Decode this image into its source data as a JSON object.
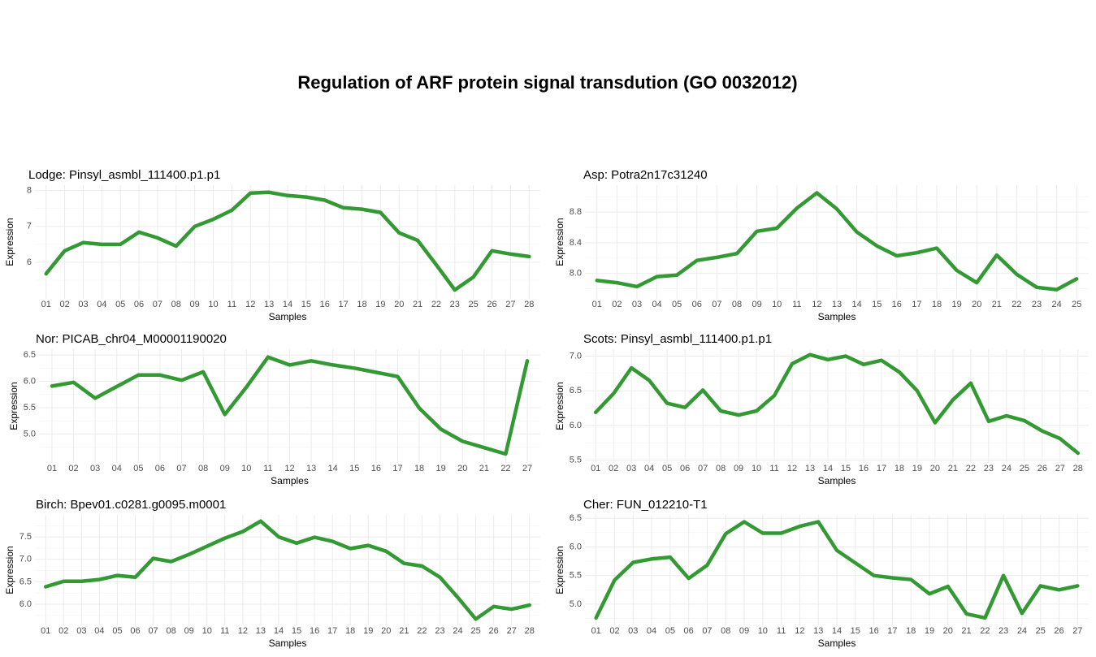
{
  "title": "Regulation of ARF protein signal transdution (GO 0032012)",
  "chart_data": [
    {
      "type": "line",
      "title": "Lodge: Pinsyl_asmbl_111400.p1.p1",
      "xlabel": "Samples",
      "ylabel": "Expression",
      "color": "#339933",
      "grid": true,
      "categories": [
        "01",
        "02",
        "03",
        "04",
        "05",
        "06",
        "07",
        "08",
        "09",
        "10",
        "11",
        "12",
        "13",
        "14",
        "15",
        "16",
        "17",
        "18",
        "19",
        "20",
        "21",
        "22",
        "23",
        "25",
        "26",
        "27",
        "28"
      ],
      "values": [
        5.68,
        6.32,
        6.55,
        6.5,
        6.5,
        6.84,
        6.68,
        6.45,
        7.0,
        7.2,
        7.45,
        7.93,
        7.95,
        7.86,
        7.82,
        7.73,
        7.52,
        7.48,
        7.39,
        6.82,
        6.61,
        5.93,
        5.23,
        5.59,
        6.32,
        6.23,
        6.16
      ],
      "ylim": [
        4.98,
        8.15
      ],
      "yticks": [
        6,
        7,
        8
      ]
    },
    {
      "type": "line",
      "title": "Asp: Potra2n17c31240",
      "xlabel": "Samples",
      "ylabel": "Expression",
      "color": "#339933",
      "grid": true,
      "categories": [
        "01",
        "02",
        "03",
        "04",
        "05",
        "06",
        "07",
        "08",
        "09",
        "10",
        "11",
        "12",
        "13",
        "14",
        "15",
        "16",
        "17",
        "18",
        "19",
        "20",
        "21",
        "22",
        "23",
        "24",
        "25"
      ],
      "values": [
        7.91,
        7.88,
        7.83,
        7.96,
        7.98,
        8.17,
        8.21,
        8.26,
        8.55,
        8.59,
        8.85,
        9.05,
        8.84,
        8.54,
        8.36,
        8.23,
        8.27,
        8.33,
        8.04,
        7.88,
        8.24,
        7.99,
        7.82,
        7.79,
        7.93
      ],
      "ylim": [
        7.67,
        9.15
      ],
      "yticks": [
        {
          "value": 8,
          "label": "8.0"
        },
        8.4,
        8.8
      ]
    },
    {
      "type": "line",
      "title": "Nor: PICAB_chr04_M00001190020",
      "xlabel": "Samples",
      "ylabel": "Expression",
      "color": "#339933",
      "grid": true,
      "categories": [
        "01",
        "02",
        "03",
        "04",
        "05",
        "06",
        "07",
        "08",
        "09",
        "10",
        "11",
        "12",
        "13",
        "14",
        "15",
        "16",
        "17",
        "18",
        "19",
        "20",
        "21",
        "22",
        "27"
      ],
      "values": [
        5.91,
        5.98,
        5.68,
        5.9,
        6.12,
        6.12,
        6.02,
        6.18,
        5.37,
        5.89,
        6.46,
        6.31,
        6.39,
        6.31,
        6.25,
        6.17,
        6.09,
        5.49,
        5.09,
        4.86,
        4.74,
        4.62,
        6.39
      ],
      "ylim": [
        4.45,
        6.61
      ],
      "yticks": [
        {
          "value": 5,
          "label": "5.0"
        },
        5.5,
        {
          "value": 6,
          "label": "6.0"
        },
        6.5
      ]
    },
    {
      "type": "line",
      "title": "Scots: Pinsyl_asmbl_111400.p1.p1",
      "xlabel": "Samples",
      "ylabel": "Expression",
      "color": "#339933",
      "grid": true,
      "categories": [
        "01",
        "02",
        "03",
        "04",
        "05",
        "06",
        "07",
        "08",
        "09",
        "10",
        "11",
        "12",
        "13",
        "14",
        "15",
        "16",
        "17",
        "18",
        "19",
        "20",
        "21",
        "22",
        "23",
        "24",
        "25",
        "26",
        "27",
        "28"
      ],
      "values": [
        6.19,
        6.46,
        6.83,
        6.65,
        6.32,
        6.26,
        6.51,
        6.21,
        6.15,
        6.21,
        6.43,
        6.89,
        7.02,
        6.95,
        7.0,
        6.88,
        6.94,
        6.77,
        6.5,
        6.04,
        6.37,
        6.61,
        6.06,
        6.14,
        6.07,
        5.92,
        5.81,
        5.6
      ],
      "ylim": [
        5.46,
        7.1
      ],
      "yticks": [
        5.5,
        {
          "value": 6,
          "label": "6.0"
        },
        6.5,
        {
          "value": 7,
          "label": "7.0"
        }
      ]
    },
    {
      "type": "line",
      "title": "Birch: Bpev01.c0281.g0095.m0001",
      "xlabel": "Samples",
      "ylabel": "Expression",
      "color": "#339933",
      "grid": true,
      "categories": [
        "01",
        "02",
        "03",
        "04",
        "05",
        "06",
        "07",
        "08",
        "09",
        "10",
        "11",
        "12",
        "13",
        "14",
        "15",
        "16",
        "17",
        "18",
        "19",
        "20",
        "21",
        "22",
        "23",
        "24",
        "25",
        "26",
        "27",
        "28"
      ],
      "values": [
        6.39,
        6.51,
        6.51,
        6.55,
        6.64,
        6.6,
        7.02,
        6.95,
        7.11,
        7.29,
        7.47,
        7.62,
        7.85,
        7.5,
        7.36,
        7.49,
        7.4,
        7.24,
        7.31,
        7.18,
        6.91,
        6.85,
        6.6,
        6.15,
        5.67,
        5.95,
        5.89,
        5.98
      ],
      "ylim": [
        5.53,
        7.99
      ],
      "yticks": [
        {
          "value": 6,
          "label": "6.0"
        },
        6.5,
        {
          "value": 7,
          "label": "7.0"
        },
        7.5
      ]
    },
    {
      "type": "line",
      "title": "Cher: FUN_012210-T1",
      "xlabel": "Samples",
      "ylabel": "Expression",
      "color": "#339933",
      "grid": true,
      "categories": [
        "01",
        "02",
        "03",
        "04",
        "05",
        "06",
        "07",
        "08",
        "09",
        "10",
        "11",
        "12",
        "13",
        "14",
        "15",
        "16",
        "17",
        "18",
        "19",
        "20",
        "21",
        "22",
        "23",
        "24",
        "25",
        "26",
        "27"
      ],
      "values": [
        4.76,
        5.42,
        5.73,
        5.79,
        5.82,
        5.45,
        5.68,
        6.23,
        6.44,
        6.24,
        6.24,
        6.36,
        6.44,
        5.94,
        5.72,
        5.5,
        5.46,
        5.43,
        5.18,
        5.31,
        4.83,
        4.76,
        5.5,
        4.84,
        5.32,
        5.25,
        5.32
      ],
      "ylim": [
        4.63,
        6.56
      ],
      "yticks": [
        {
          "value": 5,
          "label": "5.0"
        },
        5.5,
        {
          "value": 6,
          "label": "6.0"
        },
        6.5
      ]
    }
  ]
}
